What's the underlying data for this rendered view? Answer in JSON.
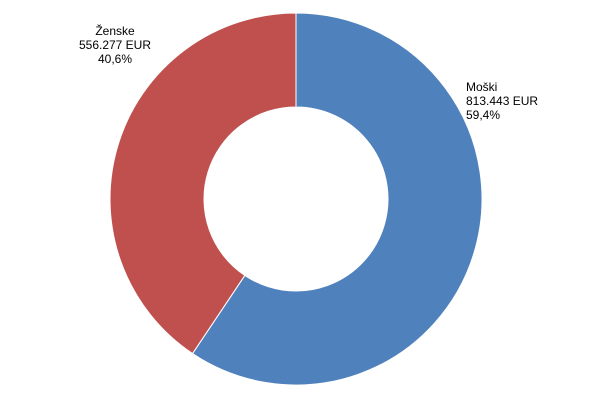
{
  "chart_data": {
    "type": "pie",
    "variant": "donut",
    "title": "",
    "slices": [
      {
        "label": "Moški",
        "value": 813443,
        "value_text": "813.443 EUR",
        "percent": 59.4,
        "percent_text": "59,4%",
        "color": "#4F81BD"
      },
      {
        "label": "Ženske",
        "value": 556277,
        "value_text": "556.277 EUR",
        "percent": 40.6,
        "percent_text": "40,6%",
        "color": "#C0504D"
      }
    ],
    "start_angle_deg": 0,
    "direction": "clockwise",
    "legend": "none"
  }
}
